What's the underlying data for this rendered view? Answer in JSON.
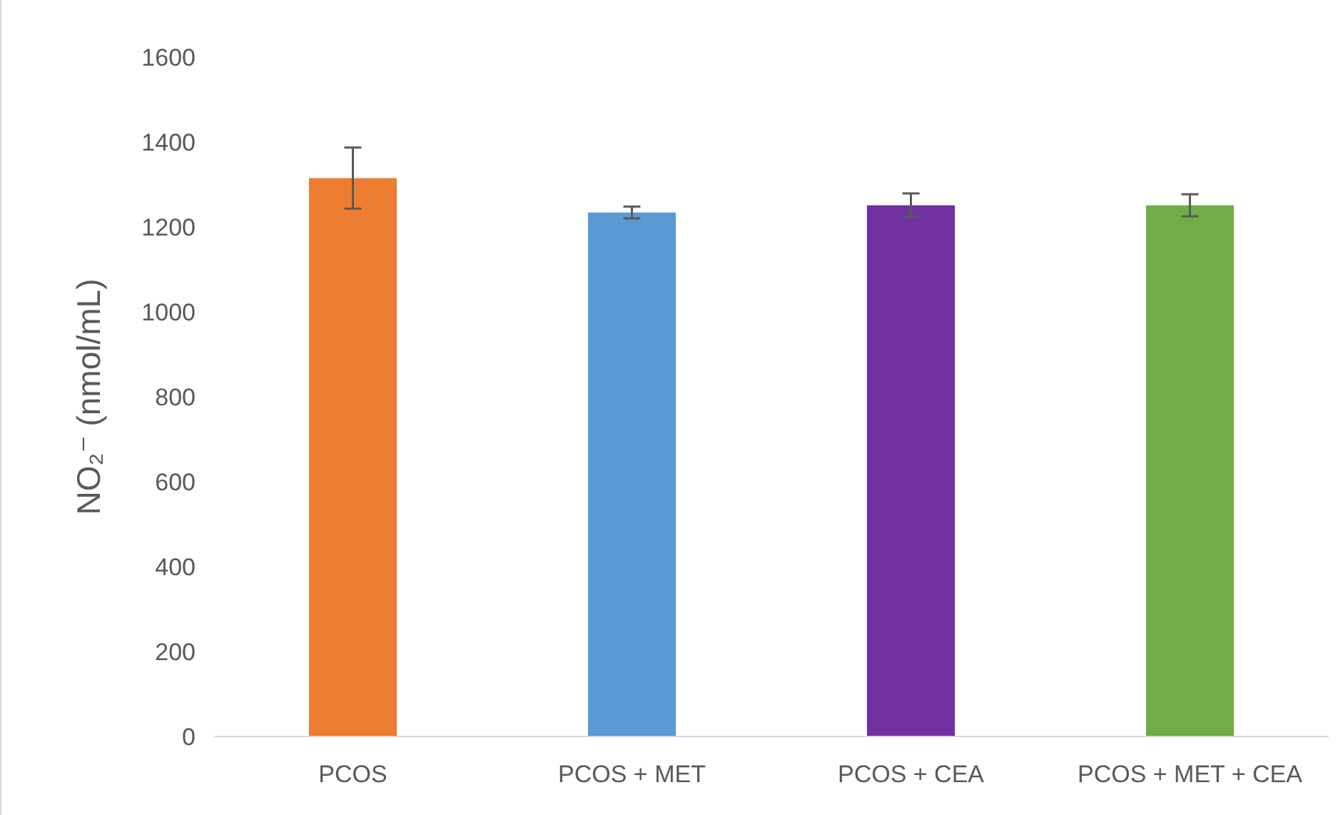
{
  "chart_data": {
    "type": "bar",
    "ylabel": "NO₂⁻ (nmol/mL)",
    "categories": [
      "PCOS",
      "PCOS + MET",
      "PCOS + CEA",
      "PCOS + MET + CEA"
    ],
    "values": [
      1315,
      1234,
      1251,
      1251
    ],
    "errors": [
      72,
      14,
      28,
      26
    ],
    "colors": [
      "#ed7d31",
      "#5b9bd5",
      "#7030a0",
      "#70ad47"
    ],
    "ylim": [
      0,
      1600
    ],
    "yticks": [
      0,
      200,
      400,
      600,
      800,
      1000,
      1200,
      1400,
      1600
    ],
    "grid": false
  }
}
